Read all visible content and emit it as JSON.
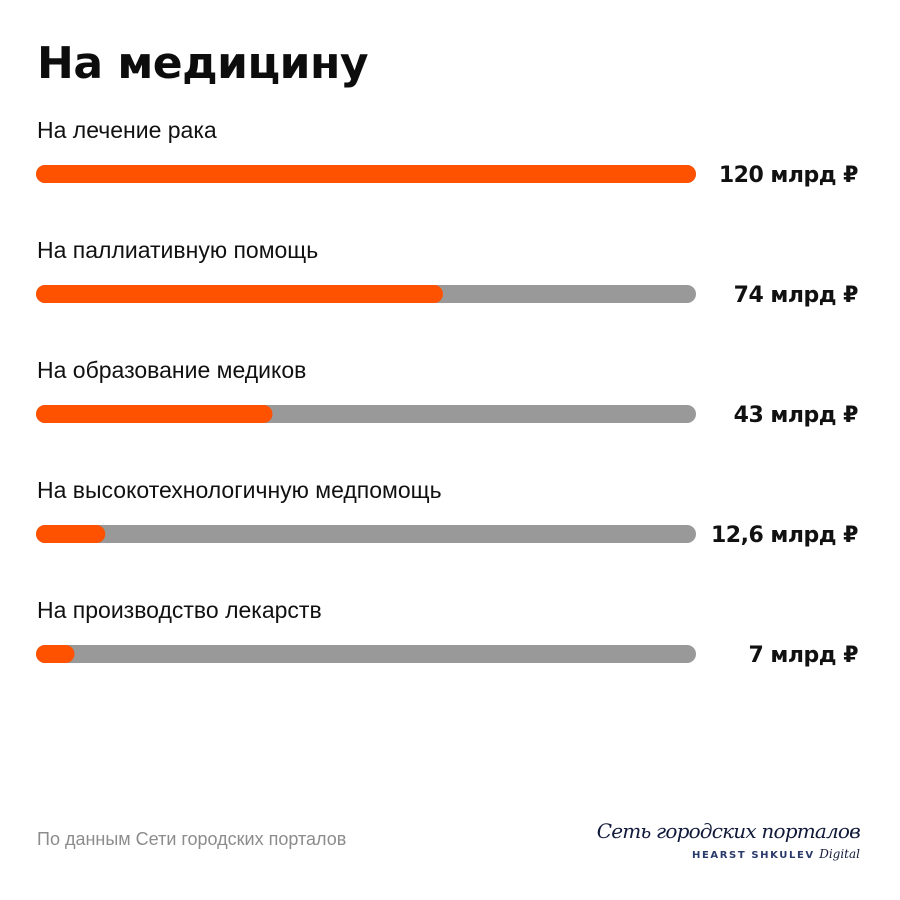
{
  "title": "На медицину",
  "source": "По данным Сети городских порталов",
  "logo": {
    "main": "Сеть городских порталов",
    "sub_caps": "HEARST SHKULEV",
    "sub_script": "Digital"
  },
  "colors": {
    "bar": "#ff5200",
    "track": "#999999",
    "text": "#111111"
  },
  "chart_data": {
    "type": "bar",
    "orientation": "horizontal",
    "title": "На медицину",
    "categories": [
      "На лечение рака",
      "На паллиативную помощь",
      "На образование медиков",
      "На высокотехнологичную медпомощь",
      "На производство лекарств"
    ],
    "values": [
      120,
      74,
      43,
      12.6,
      7
    ],
    "value_labels": [
      "120 млрд ₽",
      "74 млрд ₽",
      "43 млрд ₽",
      "12,6 млрд ₽",
      "7 млрд ₽"
    ],
    "unit": "млрд ₽",
    "xlim": [
      0,
      120
    ],
    "grid": false
  }
}
